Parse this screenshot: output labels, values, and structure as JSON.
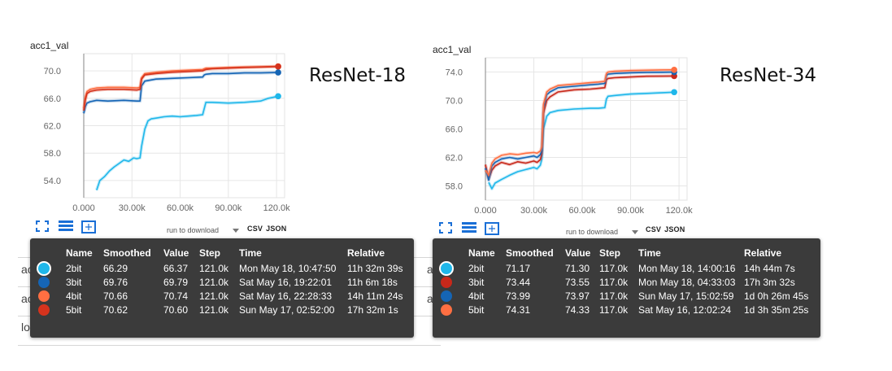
{
  "chart_data": [
    {
      "type": "line",
      "title": "acc1_val",
      "model_label": "ResNet-18",
      "xlabel": "",
      "ylabel": "",
      "xlim": [
        -5000,
        125000
      ],
      "ylim": [
        51.5,
        72.5
      ],
      "x_ticks": [
        0,
        30000,
        60000,
        90000,
        120000
      ],
      "x_tick_labels": [
        "0.000",
        "30.00k",
        "60.00k",
        "90.00k",
        "120.0k"
      ],
      "y_ticks": [
        54,
        58,
        62,
        66,
        70
      ],
      "y_tick_labels": [
        "54.0",
        "58.0",
        "62.0",
        "66.0",
        "70.0"
      ],
      "grid": true,
      "series": [
        {
          "name": "2bit",
          "color": "#1fb7ea",
          "x": [
            8000,
            10000,
            13000,
            16000,
            19000,
            22000,
            25000,
            28000,
            31000,
            33000,
            35000,
            36000,
            38000,
            40000,
            42000,
            45000,
            50000,
            55000,
            60000,
            65000,
            70000,
            74000,
            75000,
            76000,
            80000,
            90000,
            100000,
            110000,
            115000,
            121000
          ],
          "y": [
            52.6,
            54.0,
            54.6,
            55.4,
            56.0,
            56.5,
            57.0,
            56.8,
            57.3,
            57.2,
            57.3,
            59.0,
            61.5,
            62.7,
            63.0,
            63.1,
            63.3,
            63.4,
            63.3,
            63.4,
            63.5,
            63.6,
            64.5,
            65.4,
            65.4,
            65.3,
            65.4,
            65.6,
            66.0,
            66.3
          ]
        },
        {
          "name": "3bit",
          "color": "#1565b5",
          "x": [
            0,
            1000,
            2000,
            4000,
            8000,
            15000,
            25000,
            33000,
            35000,
            36000,
            38000,
            45000,
            55000,
            65000,
            74000,
            75000,
            76000,
            80000,
            90000,
            100000,
            110000,
            121000
          ],
          "y": [
            63.8,
            64.8,
            65.3,
            65.5,
            65.7,
            65.6,
            65.7,
            65.6,
            65.6,
            67.8,
            68.5,
            68.8,
            68.9,
            69.0,
            69.1,
            69.4,
            69.5,
            69.6,
            69.6,
            69.7,
            69.7,
            69.76
          ]
        },
        {
          "name": "4bit",
          "color": "#ff6f42",
          "x": [
            0,
            1000,
            2000,
            4000,
            8000,
            15000,
            25000,
            33000,
            35000,
            36000,
            38000,
            45000,
            55000,
            65000,
            74000,
            75000,
            76000,
            80000,
            90000,
            100000,
            110000,
            121000
          ],
          "y": [
            64.5,
            66.2,
            67.0,
            67.3,
            67.5,
            67.6,
            67.6,
            67.5,
            67.6,
            69.0,
            69.6,
            69.8,
            70.0,
            70.1,
            70.2,
            70.3,
            70.4,
            70.4,
            70.5,
            70.55,
            70.6,
            70.66
          ]
        },
        {
          "name": "5bit",
          "color": "#d5331d",
          "x": [
            0,
            1000,
            2000,
            4000,
            8000,
            15000,
            25000,
            33000,
            35000,
            36000,
            38000,
            45000,
            55000,
            65000,
            74000,
            75000,
            76000,
            80000,
            90000,
            100000,
            110000,
            121000
          ],
          "y": [
            64.2,
            65.8,
            66.7,
            67.0,
            67.2,
            67.3,
            67.3,
            67.2,
            67.3,
            68.8,
            69.4,
            69.6,
            69.8,
            69.9,
            70.0,
            70.1,
            70.2,
            70.3,
            70.4,
            70.5,
            70.55,
            70.62
          ]
        }
      ]
    },
    {
      "type": "line",
      "title": "acc1_val",
      "model_label": "ResNet-34",
      "xlabel": "",
      "ylabel": "",
      "xlim": [
        -5000,
        125000
      ],
      "ylim": [
        56.0,
        76.0
      ],
      "x_ticks": [
        0,
        30000,
        60000,
        90000,
        120000
      ],
      "x_tick_labels": [
        "0.000",
        "30.00k",
        "60.00k",
        "90.00k",
        "120.0k"
      ],
      "y_ticks": [
        58,
        62,
        66,
        70,
        74
      ],
      "y_tick_labels": [
        "58.0",
        "62.0",
        "66.0",
        "70.0",
        "74.0"
      ],
      "grid": true,
      "series": [
        {
          "name": "2bit",
          "color": "#1fb7ea",
          "x": [
            2000,
            4000,
            6000,
            10000,
            15000,
            20000,
            25000,
            30000,
            32000,
            34000,
            35000,
            36000,
            38000,
            40000,
            45000,
            55000,
            65000,
            70000,
            74000,
            75000,
            76000,
            80000,
            90000,
            100000,
            110000,
            117000
          ],
          "y": [
            58.5,
            57.6,
            58.4,
            58.9,
            59.5,
            60.0,
            60.3,
            60.6,
            60.4,
            60.9,
            61.8,
            66.0,
            67.8,
            68.3,
            68.6,
            68.8,
            68.9,
            68.9,
            69.0,
            70.2,
            70.6,
            70.7,
            70.9,
            71.0,
            71.1,
            71.17
          ]
        },
        {
          "name": "3bit",
          "color": "#c8281a",
          "x": [
            0,
            2000,
            4000,
            6000,
            10000,
            15000,
            20000,
            25000,
            30000,
            32000,
            34000,
            35000,
            36000,
            38000,
            40000,
            45000,
            55000,
            65000,
            70000,
            74000,
            75000,
            76000,
            80000,
            90000,
            100000,
            110000,
            117000
          ],
          "y": [
            61.0,
            59.0,
            60.2,
            60.8,
            61.3,
            61.0,
            61.4,
            61.2,
            61.5,
            61.3,
            61.7,
            62.5,
            68.2,
            70.0,
            70.5,
            71.2,
            71.5,
            71.6,
            71.7,
            71.8,
            72.9,
            73.1,
            73.2,
            73.3,
            73.4,
            73.42,
            73.44
          ]
        },
        {
          "name": "4bit",
          "color": "#1565b5",
          "x": [
            0,
            2000,
            4000,
            6000,
            10000,
            15000,
            20000,
            25000,
            30000,
            32000,
            34000,
            35000,
            36000,
            38000,
            40000,
            45000,
            55000,
            65000,
            70000,
            74000,
            75000,
            76000,
            80000,
            90000,
            100000,
            110000,
            117000
          ],
          "y": [
            60.5,
            58.8,
            60.8,
            61.3,
            61.8,
            62.0,
            61.8,
            62.0,
            62.2,
            62.0,
            62.4,
            63.0,
            69.0,
            70.8,
            71.2,
            71.8,
            72.0,
            72.2,
            72.3,
            72.4,
            73.5,
            73.7,
            73.8,
            73.9,
            73.95,
            73.97,
            73.99
          ]
        },
        {
          "name": "5bit",
          "color": "#ff6f42",
          "x": [
            0,
            2000,
            4000,
            6000,
            10000,
            15000,
            20000,
            25000,
            30000,
            32000,
            34000,
            35000,
            36000,
            38000,
            40000,
            45000,
            55000,
            65000,
            70000,
            74000,
            75000,
            76000,
            80000,
            90000,
            100000,
            110000,
            117000
          ],
          "y": [
            60.2,
            59.5,
            61.2,
            61.8,
            62.3,
            62.5,
            62.4,
            62.6,
            62.7,
            62.6,
            62.9,
            63.5,
            69.5,
            71.2,
            71.6,
            72.1,
            72.3,
            72.5,
            72.6,
            72.7,
            73.8,
            74.0,
            74.1,
            74.2,
            74.25,
            74.3,
            74.31
          ]
        }
      ]
    }
  ],
  "ui": {
    "download_label": "run to download",
    "csv_label": "CSV",
    "json_label": "JSON",
    "left_bg_rows": [
      "acc",
      "acc",
      "loss"
    ],
    "right_bg_rows": [
      "acc",
      "acc"
    ]
  },
  "tooltips": [
    {
      "headers": [
        "Name",
        "Smoothed",
        "Value",
        "Step",
        "Time",
        "Relative"
      ],
      "rows": [
        {
          "color": "#1fb7ea",
          "selected": true,
          "name": "2bit",
          "smoothed": "66.29",
          "value": "66.37",
          "step": "121.0k",
          "time": "Mon May 18, 10:47:50",
          "relative": "11h 32m 39s"
        },
        {
          "color": "#1565b5",
          "selected": false,
          "name": "3bit",
          "smoothed": "69.76",
          "value": "69.79",
          "step": "121.0k",
          "time": "Sat May 16, 19:22:01",
          "relative": "11h 6m 18s"
        },
        {
          "color": "#ff6f42",
          "selected": false,
          "name": "4bit",
          "smoothed": "70.66",
          "value": "70.74",
          "step": "121.0k",
          "time": "Sat May 16, 22:28:33",
          "relative": "14h 11m 24s"
        },
        {
          "color": "#d5331d",
          "selected": false,
          "name": "5bit",
          "smoothed": "70.62",
          "value": "70.60",
          "step": "121.0k",
          "time": "Sun May 17, 02:52:00",
          "relative": "17h 32m 1s"
        }
      ]
    },
    {
      "headers": [
        "Name",
        "Smoothed",
        "Value",
        "Step",
        "Time",
        "Relative"
      ],
      "rows": [
        {
          "color": "#1fb7ea",
          "selected": true,
          "name": "2bit",
          "smoothed": "71.17",
          "value": "71.30",
          "step": "117.0k",
          "time": "Mon May 18, 14:00:16",
          "relative": "14h 44m 7s"
        },
        {
          "color": "#c8281a",
          "selected": false,
          "name": "3bit",
          "smoothed": "73.44",
          "value": "73.55",
          "step": "117.0k",
          "time": "Mon May 18, 04:33:03",
          "relative": "17h 3m 32s"
        },
        {
          "color": "#1565b5",
          "selected": false,
          "name": "4bit",
          "smoothed": "73.99",
          "value": "73.97",
          "step": "117.0k",
          "time": "Sun May 17, 15:02:59",
          "relative": "1d 0h 26m 45s"
        },
        {
          "color": "#ff6f42",
          "selected": false,
          "name": "5bit",
          "smoothed": "74.31",
          "value": "74.33",
          "step": "117.0k",
          "time": "Sat May 16, 12:02:24",
          "relative": "1d 3h 35m 25s"
        }
      ]
    }
  ]
}
